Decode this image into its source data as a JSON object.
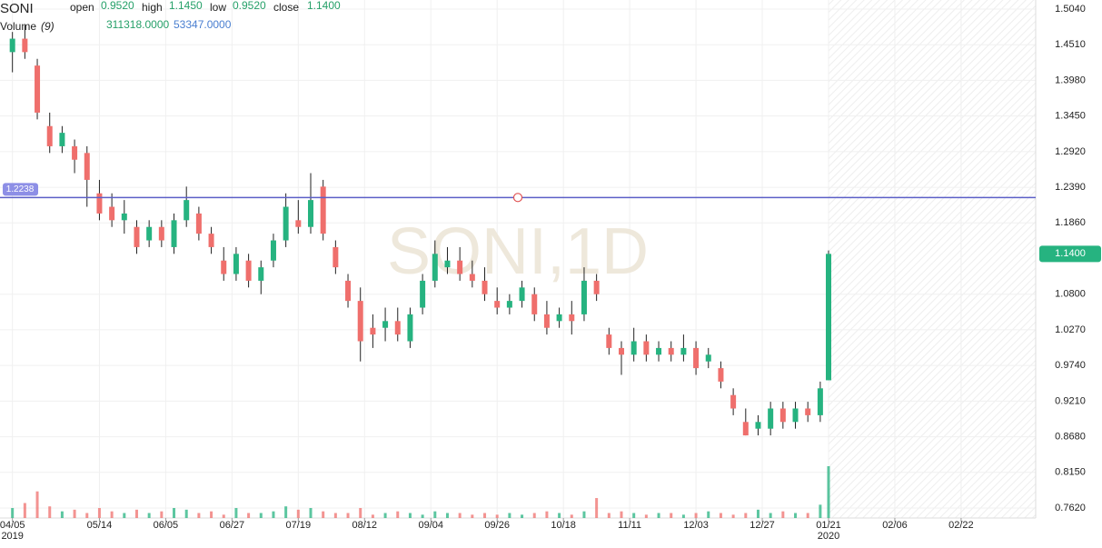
{
  "chart_data": {
    "type": "candlestick",
    "symbol": "SONI",
    "header": {
      "open_label": "open",
      "open": "0.9520",
      "high_label": "high",
      "high": "1.1450",
      "low_label": "low",
      "low": "0.9520",
      "close_label": "close",
      "close": "1.1400",
      "volume_label": "Volume",
      "volume_period": "(9)",
      "volume": "311318.0000",
      "volume_ma": "53347.0000"
    },
    "watermark": "SONI,1D",
    "hline": {
      "value": 1.2238,
      "label": "1.2238",
      "color": "#5b5fc7"
    },
    "last_price": {
      "value": 1.14,
      "label": "1.1400"
    },
    "up_color": "#26b380",
    "down_color": "#ef6f6c",
    "x": [
      0,
      3,
      6,
      9,
      12,
      15,
      18,
      21,
      24,
      27,
      30,
      33,
      36,
      39,
      42,
      45,
      48,
      51,
      54,
      57,
      60,
      63,
      66,
      69,
      72,
      75,
      78,
      81,
      84,
      87,
      90,
      93,
      96,
      99,
      102,
      105,
      108,
      111,
      114,
      117,
      120,
      123,
      126,
      129,
      132,
      135,
      138,
      141,
      144,
      147,
      150,
      153,
      156,
      159,
      162,
      165,
      168,
      171,
      174,
      177,
      180,
      183,
      186,
      189,
      192,
      195,
      197
    ],
    "open": [
      1.44,
      1.46,
      1.42,
      1.33,
      1.3,
      1.3,
      1.29,
      1.23,
      1.21,
      1.19,
      1.18,
      1.16,
      1.18,
      1.15,
      1.19,
      1.2,
      1.17,
      1.13,
      1.11,
      1.13,
      1.1,
      1.13,
      1.16,
      1.19,
      1.18,
      1.24,
      1.15,
      1.1,
      1.07,
      1.03,
      1.03,
      1.04,
      1.01,
      1.06,
      1.1,
      1.12,
      1.13,
      1.11,
      1.1,
      1.07,
      1.06,
      1.07,
      1.08,
      1.05,
      1.04,
      1.05,
      1.05,
      1.1,
      1.02,
      1.0,
      0.99,
      1.01,
      0.99,
      1.0,
      0.99,
      1.0,
      0.98,
      0.97,
      0.93,
      0.89,
      0.88,
      0.88,
      0.91,
      0.89,
      0.91,
      0.9,
      0.952
    ],
    "high": [
      1.47,
      1.48,
      1.43,
      1.35,
      1.33,
      1.31,
      1.3,
      1.25,
      1.23,
      1.22,
      1.19,
      1.19,
      1.19,
      1.2,
      1.24,
      1.21,
      1.18,
      1.15,
      1.15,
      1.14,
      1.13,
      1.17,
      1.23,
      1.22,
      1.26,
      1.25,
      1.16,
      1.11,
      1.09,
      1.05,
      1.06,
      1.06,
      1.06,
      1.11,
      1.16,
      1.15,
      1.15,
      1.13,
      1.12,
      1.09,
      1.08,
      1.1,
      1.09,
      1.07,
      1.06,
      1.07,
      1.12,
      1.11,
      1.03,
      1.01,
      1.03,
      1.02,
      1.01,
      1.01,
      1.02,
      1.01,
      1.0,
      0.98,
      0.94,
      0.91,
      0.9,
      0.92,
      0.92,
      0.92,
      0.92,
      0.95,
      1.145
    ],
    "low": [
      1.41,
      1.43,
      1.34,
      1.29,
      1.29,
      1.26,
      1.21,
      1.19,
      1.18,
      1.17,
      1.14,
      1.15,
      1.15,
      1.14,
      1.18,
      1.16,
      1.14,
      1.1,
      1.1,
      1.09,
      1.08,
      1.12,
      1.15,
      1.17,
      1.17,
      1.16,
      1.11,
      1.06,
      0.98,
      1.0,
      1.01,
      1.01,
      1.0,
      1.05,
      1.09,
      1.11,
      1.1,
      1.09,
      1.07,
      1.05,
      1.05,
      1.06,
      1.04,
      1.02,
      1.03,
      1.02,
      1.04,
      1.07,
      0.99,
      0.96,
      0.98,
      0.98,
      0.98,
      0.98,
      0.98,
      0.96,
      0.97,
      0.94,
      0.9,
      0.87,
      0.87,
      0.87,
      0.88,
      0.88,
      0.89,
      0.89,
      0.952
    ],
    "close": [
      1.46,
      1.44,
      1.35,
      1.3,
      1.32,
      1.28,
      1.25,
      1.2,
      1.19,
      1.2,
      1.15,
      1.18,
      1.16,
      1.19,
      1.22,
      1.17,
      1.15,
      1.11,
      1.14,
      1.1,
      1.12,
      1.16,
      1.21,
      1.18,
      1.22,
      1.17,
      1.12,
      1.07,
      1.01,
      1.02,
      1.04,
      1.02,
      1.05,
      1.1,
      1.14,
      1.13,
      1.11,
      1.1,
      1.08,
      1.06,
      1.07,
      1.09,
      1.05,
      1.03,
      1.05,
      1.04,
      1.1,
      1.08,
      1.0,
      0.99,
      1.01,
      0.99,
      1.0,
      0.99,
      1.0,
      0.97,
      0.99,
      0.95,
      0.91,
      0.87,
      0.89,
      0.91,
      0.89,
      0.91,
      0.9,
      0.94,
      1.14
    ],
    "volume": [
      60000,
      90000,
      160000,
      70000,
      40000,
      50000,
      30000,
      60000,
      40000,
      30000,
      50000,
      30000,
      40000,
      60000,
      50000,
      30000,
      40000,
      20000,
      60000,
      30000,
      30000,
      40000,
      70000,
      50000,
      60000,
      40000,
      30000,
      30000,
      60000,
      20000,
      30000,
      40000,
      30000,
      20000,
      40000,
      30000,
      30000,
      20000,
      30000,
      20000,
      30000,
      20000,
      30000,
      40000,
      30000,
      20000,
      40000,
      120000,
      30000,
      40000,
      30000,
      20000,
      30000,
      30000,
      20000,
      30000,
      40000,
      30000,
      20000,
      30000,
      50000,
      30000,
      40000,
      30000,
      30000,
      80000,
      311318
    ],
    "ylim": [
      0.762,
      1.504
    ],
    "yticks": [
      {
        "value": 1.504,
        "label": "1.5040"
      },
      {
        "value": 1.451,
        "label": "1.4510"
      },
      {
        "value": 1.398,
        "label": "1.3980"
      },
      {
        "value": 1.345,
        "label": "1.3450"
      },
      {
        "value": 1.292,
        "label": "1.2920"
      },
      {
        "value": 1.239,
        "label": "1.2390"
      },
      {
        "value": 1.186,
        "label": "1.1860"
      },
      {
        "value": 1.08,
        "label": "1.0800"
      },
      {
        "value": 1.027,
        "label": "1.0270"
      },
      {
        "value": 0.974,
        "label": "0.9740"
      },
      {
        "value": 0.921,
        "label": "0.9210"
      },
      {
        "value": 0.868,
        "label": "0.8680"
      },
      {
        "value": 0.815,
        "label": "0.8150"
      },
      {
        "value": 0.762,
        "label": "0.7620"
      }
    ],
    "xlim": [
      -3,
      247
    ],
    "xticks": [
      {
        "value": 0,
        "label": "04/05"
      },
      {
        "value": 21,
        "label": "05/14"
      },
      {
        "value": 37,
        "label": "06/05"
      },
      {
        "value": 53,
        "label": "06/27"
      },
      {
        "value": 69,
        "label": "07/19"
      },
      {
        "value": 85,
        "label": "08/12"
      },
      {
        "value": 101,
        "label": "09/04"
      },
      {
        "value": 117,
        "label": "09/26"
      },
      {
        "value": 133,
        "label": "10/18"
      },
      {
        "value": 149,
        "label": "11/11"
      },
      {
        "value": 165,
        "label": "12/03"
      },
      {
        "value": 181,
        "label": "12/27"
      },
      {
        "value": 197,
        "label": "01/21"
      },
      {
        "value": 213,
        "label": "02/06"
      },
      {
        "value": 229,
        "label": "02/22"
      }
    ],
    "year_labels": [
      {
        "value": 0,
        "label": "2019"
      },
      {
        "value": 197,
        "label": "2020"
      }
    ],
    "future_from": 197,
    "grid": true
  }
}
